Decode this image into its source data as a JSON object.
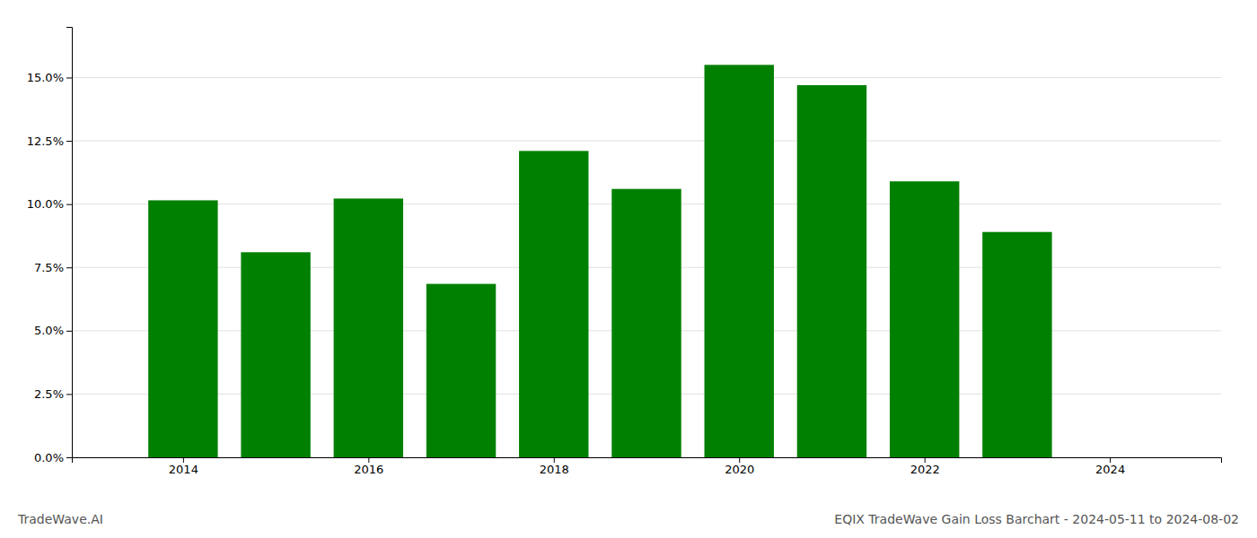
{
  "chart_data": {
    "type": "bar",
    "title": "EQIX TradeWave Gain Loss Barchart - 2024-05-11 to 2024-08-02",
    "annotations": [
      "TradeWave.AI"
    ],
    "x": [
      2014,
      2015,
      2016,
      2017,
      2018,
      2019,
      2020,
      2021,
      2022,
      2023
    ],
    "values": [
      0.1015,
      0.081,
      0.1022,
      0.0685,
      0.121,
      0.106,
      0.155,
      0.147,
      0.109,
      0.089
    ],
    "color": "#008000",
    "xlim": [
      2012.8,
      2025.2
    ],
    "xticks": [
      2014,
      2016,
      2018,
      2020,
      2022,
      2024
    ],
    "ylim": [
      0,
      0.17
    ],
    "yticks": [
      {
        "value": 0.0,
        "label": "0.0%"
      },
      {
        "value": 0.025,
        "label": "2.5%"
      },
      {
        "value": 0.05,
        "label": "5.0%"
      },
      {
        "value": 0.075,
        "label": "7.5%"
      },
      {
        "value": 0.1,
        "label": "10.0%"
      },
      {
        "value": 0.125,
        "label": "12.5%"
      },
      {
        "value": 0.15,
        "label": "15.0%"
      }
    ],
    "grid": true
  }
}
